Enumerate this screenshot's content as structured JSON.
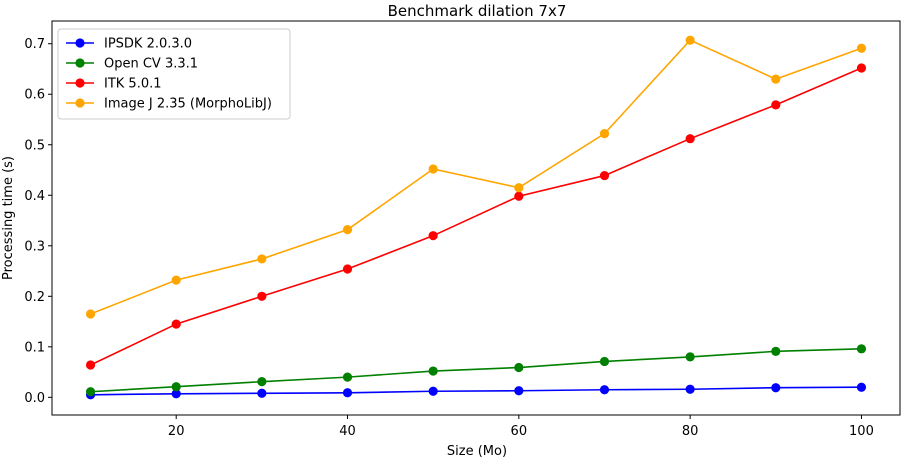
{
  "chart_data": {
    "type": "line",
    "title": "Benchmark dilation 7x7",
    "xlabel": "Size (Mo)",
    "ylabel": "Processing time (s)",
    "xlim": [
      5.5,
      104.5
    ],
    "ylim": [
      -0.035,
      0.745
    ],
    "x_ticks": [
      20,
      40,
      60,
      80,
      100
    ],
    "y_ticks": [
      0.0,
      0.1,
      0.2,
      0.3,
      0.4,
      0.5,
      0.6,
      0.7
    ],
    "x": [
      10,
      20,
      30,
      40,
      50,
      60,
      70,
      80,
      90,
      100
    ],
    "legend_position": "top-left",
    "grid": false,
    "series": [
      {
        "name": "IPSDK 2.0.3.0",
        "color": "#0000ff",
        "values": [
          0.005,
          0.007,
          0.008,
          0.009,
          0.012,
          0.013,
          0.015,
          0.016,
          0.019,
          0.02
        ]
      },
      {
        "name": "Open CV 3.3.1",
        "color": "#008000",
        "values": [
          0.011,
          0.021,
          0.031,
          0.04,
          0.052,
          0.059,
          0.071,
          0.08,
          0.091,
          0.096
        ]
      },
      {
        "name": "ITK 5.0.1",
        "color": "#ff0000",
        "values": [
          0.064,
          0.145,
          0.2,
          0.254,
          0.32,
          0.398,
          0.439,
          0.512,
          0.579,
          0.652
        ]
      },
      {
        "name": "Image J 2.35 (MorphoLibJ)",
        "color": "#ffa500",
        "values": [
          0.165,
          0.232,
          0.274,
          0.332,
          0.452,
          0.415,
          0.522,
          0.707,
          0.63,
          0.691
        ]
      }
    ]
  }
}
